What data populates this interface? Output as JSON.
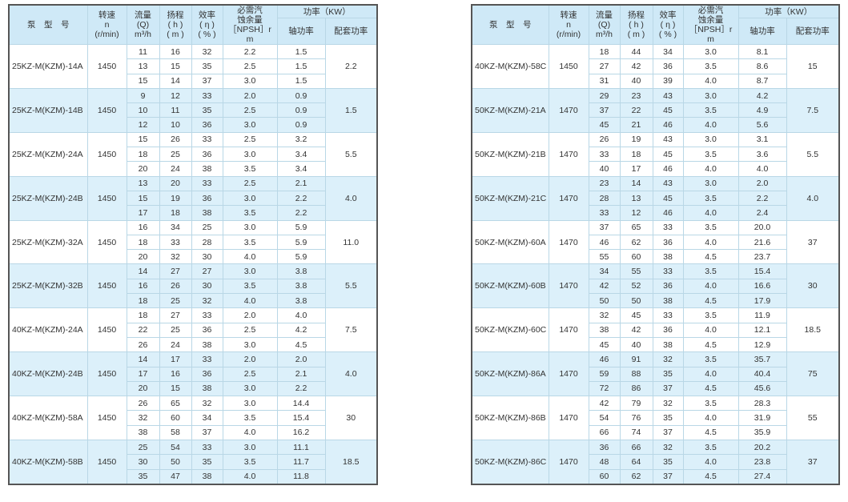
{
  "header": {
    "model": "泵　型　号",
    "speed": [
      "转速",
      "n",
      "(r/min)"
    ],
    "flow": [
      "流量",
      "(Q)",
      "m³/h"
    ],
    "head": [
      "扬程",
      "( h )",
      "( m )"
    ],
    "eff": [
      "效率",
      "( η )",
      "( % )"
    ],
    "npsh": [
      "必需汽",
      "蚀余量",
      "［NPSH］r",
      "m"
    ],
    "power": "功率（KW）",
    "shaft_power": "轴功率",
    "motor_power": "配套功率"
  },
  "colors": {
    "header_bg": "#cfe9f7",
    "alt_row_bg": "#dcf0fa",
    "border": "#b9d7e6"
  },
  "tables": [
    [
      {
        "model": "25KZ-M(KZM)-14A",
        "speed": "1450",
        "motor": "2.2",
        "rows": [
          [
            "11",
            "16",
            "32",
            "2.2",
            "1.5"
          ],
          [
            "13",
            "15",
            "35",
            "2.5",
            "1.5"
          ],
          [
            "15",
            "14",
            "37",
            "3.0",
            "1.5"
          ]
        ]
      },
      {
        "model": "25KZ-M(KZM)-14B",
        "speed": "1450",
        "motor": "1.5",
        "rows": [
          [
            "9",
            "12",
            "33",
            "2.0",
            "0.9"
          ],
          [
            "10",
            "11",
            "35",
            "2.5",
            "0.9"
          ],
          [
            "12",
            "10",
            "36",
            "3.0",
            "0.9"
          ]
        ]
      },
      {
        "model": "25KZ-M(KZM)-24A",
        "speed": "1450",
        "motor": "5.5",
        "rows": [
          [
            "15",
            "26",
            "33",
            "2.5",
            "3.2"
          ],
          [
            "18",
            "25",
            "36",
            "3.0",
            "3.4"
          ],
          [
            "20",
            "24",
            "38",
            "3.5",
            "3.4"
          ]
        ]
      },
      {
        "model": "25KZ-M(KZM)-24B",
        "speed": "1450",
        "motor": "4.0",
        "rows": [
          [
            "13",
            "20",
            "33",
            "2.5",
            "2.1"
          ],
          [
            "15",
            "19",
            "36",
            "3.0",
            "2.2"
          ],
          [
            "17",
            "18",
            "38",
            "3.5",
            "2.2"
          ]
        ]
      },
      {
        "model": "25KZ-M(KZM)-32A",
        "speed": "1450",
        "motor": "11.0",
        "rows": [
          [
            "16",
            "34",
            "25",
            "3.0",
            "5.9"
          ],
          [
            "18",
            "33",
            "28",
            "3.5",
            "5.9"
          ],
          [
            "20",
            "32",
            "30",
            "4.0",
            "5.9"
          ]
        ]
      },
      {
        "model": "25KZ-M(KZM)-32B",
        "speed": "1450",
        "motor": "5.5",
        "rows": [
          [
            "14",
            "27",
            "27",
            "3.0",
            "3.8"
          ],
          [
            "16",
            "26",
            "30",
            "3.5",
            "3.8"
          ],
          [
            "18",
            "25",
            "32",
            "4.0",
            "3.8"
          ]
        ]
      },
      {
        "model": "40KZ-M(KZM)-24A",
        "speed": "1450",
        "motor": "7.5",
        "rows": [
          [
            "18",
            "27",
            "33",
            "2.0",
            "4.0"
          ],
          [
            "22",
            "25",
            "36",
            "2.5",
            "4.2"
          ],
          [
            "26",
            "24",
            "38",
            "3.0",
            "4.5"
          ]
        ]
      },
      {
        "model": "40KZ-M(KZM)-24B",
        "speed": "1450",
        "motor": "4.0",
        "rows": [
          [
            "14",
            "17",
            "33",
            "2.0",
            "2.0"
          ],
          [
            "17",
            "16",
            "36",
            "2.5",
            "2.1"
          ],
          [
            "20",
            "15",
            "38",
            "3.0",
            "2.2"
          ]
        ]
      },
      {
        "model": "40KZ-M(KZM)-58A",
        "speed": "1450",
        "motor": "30",
        "rows": [
          [
            "26",
            "65",
            "32",
            "3.0",
            "14.4"
          ],
          [
            "32",
            "60",
            "34",
            "3.5",
            "15.4"
          ],
          [
            "38",
            "58",
            "37",
            "4.0",
            "16.2"
          ]
        ]
      },
      {
        "model": "40KZ-M(KZM)-58B",
        "speed": "1450",
        "motor": "18.5",
        "rows": [
          [
            "25",
            "54",
            "33",
            "3.0",
            "11.1"
          ],
          [
            "30",
            "50",
            "35",
            "3.5",
            "11.7"
          ],
          [
            "35",
            "47",
            "38",
            "4.0",
            "11.8"
          ]
        ]
      }
    ],
    [
      {
        "model": "40KZ-M(KZM)-58C",
        "speed": "1450",
        "motor": "15",
        "rows": [
          [
            "18",
            "44",
            "34",
            "3.0",
            "8.1"
          ],
          [
            "27",
            "42",
            "36",
            "3.5",
            "8.6"
          ],
          [
            "31",
            "40",
            "39",
            "4.0",
            "8.7"
          ]
        ]
      },
      {
        "model": "50KZ-M(KZM)-21A",
        "speed": "1470",
        "motor": "7.5",
        "rows": [
          [
            "29",
            "23",
            "43",
            "3.0",
            "4.2"
          ],
          [
            "37",
            "22",
            "45",
            "3.5",
            "4.9"
          ],
          [
            "45",
            "21",
            "46",
            "4.0",
            "5.6"
          ]
        ]
      },
      {
        "model": "50KZ-M(KZM)-21B",
        "speed": "1470",
        "motor": "5.5",
        "rows": [
          [
            "26",
            "19",
            "43",
            "3.0",
            "3.1"
          ],
          [
            "33",
            "18",
            "45",
            "3.5",
            "3.6"
          ],
          [
            "40",
            "17",
            "46",
            "4.0",
            "4.0"
          ]
        ]
      },
      {
        "model": "50KZ-M(KZM)-21C",
        "speed": "1470",
        "motor": "4.0",
        "rows": [
          [
            "23",
            "14",
            "43",
            "3.0",
            "2.0"
          ],
          [
            "28",
            "13",
            "45",
            "3.5",
            "2.2"
          ],
          [
            "33",
            "12",
            "46",
            "4.0",
            "2.4"
          ]
        ]
      },
      {
        "model": "50KZ-M(KZM)-60A",
        "speed": "1470",
        "motor": "37",
        "rows": [
          [
            "37",
            "65",
            "33",
            "3.5",
            "20.0"
          ],
          [
            "46",
            "62",
            "36",
            "4.0",
            "21.6"
          ],
          [
            "55",
            "60",
            "38",
            "4.5",
            "23.7"
          ]
        ]
      },
      {
        "model": "50KZ-M(KZM)-60B",
        "speed": "1470",
        "motor": "30",
        "rows": [
          [
            "34",
            "55",
            "33",
            "3.5",
            "15.4"
          ],
          [
            "42",
            "52",
            "36",
            "4.0",
            "16.6"
          ],
          [
            "50",
            "50",
            "38",
            "4.5",
            "17.9"
          ]
        ]
      },
      {
        "model": "50KZ-M(KZM)-60C",
        "speed": "1470",
        "motor": "18.5",
        "rows": [
          [
            "32",
            "45",
            "33",
            "3.5",
            "11.9"
          ],
          [
            "38",
            "42",
            "36",
            "4.0",
            "12.1"
          ],
          [
            "45",
            "40",
            "38",
            "4.5",
            "12.9"
          ]
        ]
      },
      {
        "model": "50KZ-M(KZM)-86A",
        "speed": "1470",
        "motor": "75",
        "rows": [
          [
            "46",
            "91",
            "32",
            "3.5",
            "35.7"
          ],
          [
            "59",
            "88",
            "35",
            "4.0",
            "40.4"
          ],
          [
            "72",
            "86",
            "37",
            "4.5",
            "45.6"
          ]
        ]
      },
      {
        "model": "50KZ-M(KZM)-86B",
        "speed": "1470",
        "motor": "55",
        "rows": [
          [
            "42",
            "79",
            "32",
            "3.5",
            "28.3"
          ],
          [
            "54",
            "76",
            "35",
            "4.0",
            "31.9"
          ],
          [
            "66",
            "74",
            "37",
            "4.5",
            "35.9"
          ]
        ]
      },
      {
        "model": "50KZ-M(KZM)-86C",
        "speed": "1470",
        "motor": "37",
        "rows": [
          [
            "36",
            "66",
            "32",
            "3.5",
            "20.2"
          ],
          [
            "48",
            "64",
            "35",
            "4.0",
            "23.8"
          ],
          [
            "60",
            "62",
            "37",
            "4.5",
            "27.4"
          ]
        ]
      }
    ]
  ]
}
